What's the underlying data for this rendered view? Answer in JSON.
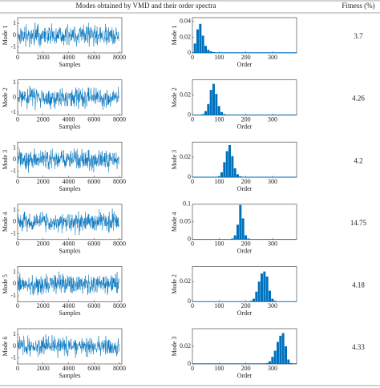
{
  "table": {
    "header": [
      "Modes obtained by VMD and their order spectra",
      "Fitness (%)"
    ],
    "rows": [
      {
        "time_plot": {
          "type": "line",
          "ylabel": "Mode 1",
          "xlabel": "Samples",
          "xlim": [
            0,
            8192
          ],
          "ylim": [
            -1.5,
            1.5
          ],
          "xticks": [
            0,
            2000,
            4000,
            6000,
            8000
          ],
          "yticks": [
            -1,
            0,
            1
          ],
          "color": "#0072bd"
        },
        "spectrum_plot": {
          "type": "bar",
          "ylabel": "Mode 1",
          "xlabel": "Order",
          "xlim": [
            0,
            390
          ],
          "ylim": [
            0,
            0.045
          ],
          "xticks": [
            0,
            100,
            200,
            300
          ],
          "yticks": [
            0,
            0.02,
            0.04
          ],
          "color": "#0072bd",
          "x": [
            0,
            10,
            20,
            30,
            40,
            50,
            60,
            70,
            80,
            90,
            100,
            110,
            120,
            130,
            140,
            150,
            160,
            170,
            180,
            190,
            200,
            210,
            220,
            230,
            240,
            250,
            260,
            270,
            280,
            290,
            300,
            310,
            320,
            330,
            340,
            350,
            360,
            370,
            380
          ],
          "values": [
            0,
            0.012,
            0.03,
            0.037,
            0.022,
            0.009,
            0.004,
            0.002,
            0.001,
            0,
            0,
            0,
            0,
            0,
            0,
            0,
            0,
            0,
            0,
            0,
            0,
            0,
            0,
            0,
            0,
            0,
            0,
            0,
            0,
            0,
            0,
            0,
            0,
            0,
            0,
            0,
            0,
            0,
            0
          ]
        },
        "fitness": 3.7
      },
      {
        "time_plot": {
          "type": "line",
          "ylabel": "Mode 2",
          "xlabel": "Samples",
          "xlim": [
            0,
            8192
          ],
          "ylim": [
            -1.2,
            1.2
          ],
          "xticks": [
            0,
            2000,
            4000,
            6000,
            8000
          ],
          "yticks": [
            -1,
            0,
            1
          ],
          "color": "#0072bd"
        },
        "spectrum_plot": {
          "type": "bar",
          "ylabel": "Mode 2",
          "xlabel": "Order",
          "xlim": [
            0,
            390
          ],
          "ylim": [
            0,
            0.035
          ],
          "xticks": [
            0,
            100,
            200,
            300
          ],
          "yticks": [
            0,
            0.02
          ],
          "color": "#0072bd",
          "x": [
            0,
            10,
            20,
            30,
            40,
            50,
            60,
            70,
            80,
            90,
            100,
            110,
            120,
            130,
            140,
            150,
            160,
            170,
            180,
            190,
            200,
            210,
            220,
            230,
            240,
            250,
            260,
            270,
            280,
            290,
            300,
            310,
            320,
            330,
            340,
            350,
            360,
            370,
            380
          ],
          "values": [
            0,
            0,
            0,
            0,
            0.001,
            0.004,
            0.011,
            0.025,
            0.031,
            0.021,
            0.009,
            0.003,
            0.001,
            0,
            0,
            0,
            0,
            0,
            0,
            0,
            0,
            0,
            0,
            0,
            0,
            0,
            0,
            0,
            0,
            0,
            0,
            0,
            0,
            0,
            0,
            0,
            0,
            0,
            0
          ]
        },
        "fitness": 4.26
      },
      {
        "time_plot": {
          "type": "line",
          "ylabel": "Mode 3",
          "xlabel": "Samples",
          "xlim": [
            0,
            8192
          ],
          "ylim": [
            -1.5,
            1.5
          ],
          "xticks": [
            0,
            2000,
            4000,
            6000,
            8000
          ],
          "yticks": [
            -1,
            0,
            1
          ],
          "color": "#0072bd"
        },
        "spectrum_plot": {
          "type": "bar",
          "ylabel": "Mode 3",
          "xlabel": "Order",
          "xlim": [
            0,
            390
          ],
          "ylim": [
            0,
            0.035
          ],
          "xticks": [
            0,
            100,
            200,
            300
          ],
          "yticks": [
            0,
            0.02
          ],
          "color": "#0072bd",
          "x": [
            0,
            10,
            20,
            30,
            40,
            50,
            60,
            70,
            80,
            90,
            100,
            110,
            120,
            130,
            140,
            150,
            160,
            170,
            180,
            190,
            200,
            210,
            220,
            230,
            240,
            250,
            260,
            270,
            280,
            290,
            300,
            310,
            320,
            330,
            340,
            350,
            360,
            370,
            380
          ],
          "values": [
            0,
            0,
            0,
            0,
            0,
            0,
            0,
            0,
            0,
            0,
            0.001,
            0.005,
            0.015,
            0.026,
            0.032,
            0.021,
            0.009,
            0.003,
            0.001,
            0,
            0,
            0,
            0,
            0,
            0,
            0,
            0,
            0,
            0,
            0,
            0,
            0,
            0,
            0,
            0,
            0,
            0,
            0,
            0
          ]
        },
        "fitness": 4.2
      },
      {
        "time_plot": {
          "type": "line",
          "ylabel": "Mode 4",
          "xlabel": "Samples",
          "xlim": [
            0,
            8192
          ],
          "ylim": [
            -1.5,
            1.5
          ],
          "xticks": [
            0,
            2000,
            4000,
            6000,
            8000
          ],
          "yticks": [
            -1,
            0,
            1
          ],
          "color": "#0072bd"
        },
        "spectrum_plot": {
          "type": "bar",
          "ylabel": "Mode 4",
          "xlabel": "Order",
          "xlim": [
            0,
            390
          ],
          "ylim": [
            0,
            0.1
          ],
          "xticks": [
            0,
            100,
            200,
            300
          ],
          "yticks": [
            0,
            0.05,
            0.1
          ],
          "color": "#0072bd",
          "x": [
            0,
            10,
            20,
            30,
            40,
            50,
            60,
            70,
            80,
            90,
            100,
            110,
            120,
            130,
            140,
            150,
            160,
            170,
            180,
            190,
            200,
            210,
            220,
            230,
            240,
            250,
            260,
            270,
            280,
            290,
            300,
            310,
            320,
            330,
            340,
            350,
            360,
            370,
            380
          ],
          "values": [
            0,
            0,
            0,
            0,
            0,
            0,
            0,
            0,
            0,
            0,
            0,
            0,
            0,
            0,
            0.001,
            0.003,
            0.012,
            0.042,
            0.098,
            0.06,
            0.012,
            0.003,
            0.001,
            0,
            0,
            0,
            0,
            0,
            0,
            0,
            0,
            0,
            0,
            0,
            0,
            0,
            0,
            0,
            0
          ]
        },
        "fitness": 14.75
      },
      {
        "time_plot": {
          "type": "line",
          "ylabel": "Mode 5",
          "xlabel": "Samples",
          "xlim": [
            0,
            8192
          ],
          "ylim": [
            -1.5,
            1.5
          ],
          "xticks": [
            0,
            2000,
            4000,
            6000,
            8000
          ],
          "yticks": [
            -1,
            0,
            1
          ],
          "color": "#0072bd"
        },
        "spectrum_plot": {
          "type": "bar",
          "ylabel": "Mode 2",
          "xlabel": "Order",
          "xlim": [
            0,
            390
          ],
          "ylim": [
            0,
            0.035
          ],
          "xticks": [
            0,
            100,
            200,
            300
          ],
          "yticks": [
            0,
            0.02
          ],
          "color": "#0072bd",
          "x": [
            0,
            10,
            20,
            30,
            40,
            50,
            60,
            70,
            80,
            90,
            100,
            110,
            120,
            130,
            140,
            150,
            160,
            170,
            180,
            190,
            200,
            210,
            220,
            230,
            240,
            250,
            260,
            270,
            280,
            290,
            300,
            310,
            320,
            330,
            340,
            350,
            360,
            370,
            380
          ],
          "values": [
            0,
            0,
            0,
            0,
            0,
            0,
            0,
            0,
            0,
            0,
            0,
            0,
            0,
            0,
            0,
            0,
            0,
            0,
            0,
            0,
            0,
            0,
            0.001,
            0.003,
            0.01,
            0.02,
            0.028,
            0.03,
            0.025,
            0.011,
            0.003,
            0.001,
            0,
            0,
            0,
            0,
            0,
            0,
            0
          ]
        },
        "fitness": 4.18
      },
      {
        "time_plot": {
          "type": "line",
          "ylabel": "Mode 6",
          "xlabel": "Samples",
          "xlim": [
            0,
            8192
          ],
          "ylim": [
            -1.5,
            1.5
          ],
          "xticks": [
            0,
            2000,
            4000,
            6000,
            8000
          ],
          "yticks": [
            -1,
            0,
            1
          ],
          "color": "#0072bd"
        },
        "spectrum_plot": {
          "type": "bar",
          "ylabel": "Mode 3",
          "xlabel": "Order",
          "xlim": [
            0,
            390
          ],
          "ylim": [
            0,
            0.04
          ],
          "xticks": [
            0,
            100,
            200,
            300
          ],
          "yticks": [
            0,
            0.02
          ],
          "color": "#0072bd",
          "x": [
            0,
            10,
            20,
            30,
            40,
            50,
            60,
            70,
            80,
            90,
            100,
            110,
            120,
            130,
            140,
            150,
            160,
            170,
            180,
            190,
            200,
            210,
            220,
            230,
            240,
            250,
            260,
            270,
            280,
            290,
            300,
            310,
            320,
            330,
            340,
            350,
            360,
            370,
            380
          ],
          "values": [
            0,
            0,
            0,
            0,
            0,
            0,
            0,
            0,
            0,
            0,
            0,
            0,
            0,
            0,
            0,
            0,
            0,
            0,
            0,
            0,
            0,
            0,
            0,
            0,
            0,
            0,
            0,
            0,
            0.001,
            0.003,
            0.008,
            0.015,
            0.025,
            0.032,
            0.035,
            0.02,
            0.005,
            0.001,
            0
          ]
        },
        "fitness": 4.33
      }
    ]
  }
}
